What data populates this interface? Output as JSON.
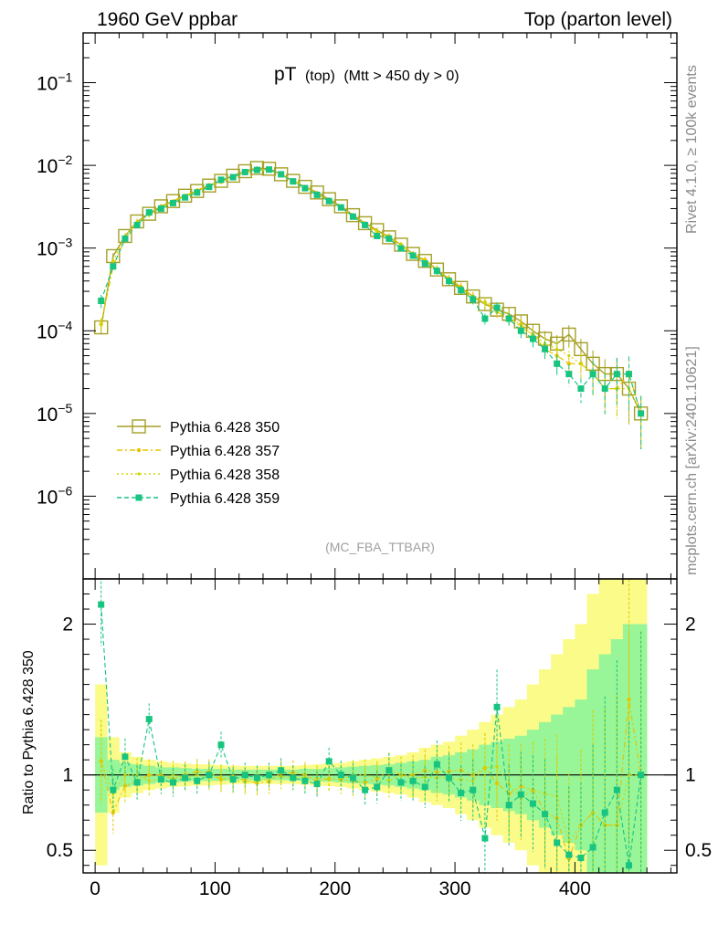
{
  "header": {
    "left": "1960 GeV ppbar",
    "right": "Top (parton level)"
  },
  "side_labels": {
    "rivet": "Rivet 4.1.0, ≥ 100k events",
    "mcplots": "mcplots.cern.ch [arXiv:2401.10621]"
  },
  "main_plot": {
    "title_main": "pT",
    "title_sub": "(top)",
    "title_cond": "(Mtt > 450 dy > 0)",
    "analysis": "(MC_FBA_TTBAR)"
  },
  "ratio_plot": {
    "ylabel": "Ratio to Pythia 6.428 350"
  },
  "colors": {
    "s350": "#a5a027",
    "s357": "#e6c400",
    "s358": "#cfd600",
    "s359": "#17c480",
    "band350": "#98f598",
    "band_yellow": "#fbfb8a"
  },
  "chart_data": {
    "type": "line",
    "title": "pT (top) (Mtt > 450 dy > 0)",
    "xlabel": "",
    "ylabel": "",
    "xlim": [
      -10,
      485
    ],
    "ylim_log": [
      1e-07,
      0.4
    ],
    "ratio_ylim": [
      0.35,
      2.3
    ],
    "x_ticks": [
      0,
      100,
      200,
      300,
      400
    ],
    "y_ticks_log": [
      {
        "value": 1e-06,
        "base": "10",
        "exp": "−6"
      },
      {
        "value": 1e-05,
        "base": "10",
        "exp": "−5"
      },
      {
        "value": 0.0001,
        "base": "10",
        "exp": "−4"
      },
      {
        "value": 0.001,
        "base": "10",
        "exp": "−3"
      },
      {
        "value": 0.01,
        "base": "10",
        "exp": "−2"
      },
      {
        "value": 0.1,
        "base": "10",
        "exp": "−1"
      }
    ],
    "ratio_ticks": [
      {
        "value": 0.5,
        "label": "0.5"
      },
      {
        "value": 1,
        "label": "1"
      },
      {
        "value": 2,
        "label": "2"
      }
    ],
    "x": [
      5,
      15,
      25,
      35,
      45,
      55,
      65,
      75,
      85,
      95,
      105,
      115,
      125,
      135,
      145,
      155,
      165,
      175,
      185,
      195,
      205,
      215,
      225,
      235,
      245,
      255,
      265,
      275,
      285,
      295,
      305,
      315,
      325,
      335,
      345,
      355,
      365,
      375,
      385,
      395,
      405,
      415,
      425,
      435,
      445,
      455
    ],
    "series": [
      {
        "name": "Pythia 6.428 350",
        "key": "s350",
        "marker": "open-square",
        "dash": "none",
        "values": [
          0.00011,
          0.0008,
          0.0014,
          0.0021,
          0.0026,
          0.0032,
          0.0037,
          0.0043,
          0.0049,
          0.0057,
          0.0065,
          0.0075,
          0.0085,
          0.0093,
          0.0091,
          0.0078,
          0.0065,
          0.0055,
          0.0047,
          0.0039,
          0.0032,
          0.0025,
          0.002,
          0.00165,
          0.00135,
          0.0011,
          0.00085,
          0.0007,
          0.00055,
          0.00042,
          0.00033,
          0.00026,
          0.00021,
          0.00018,
          0.00016,
          0.00013,
          0.0001,
          8e-05,
          7e-05,
          9e-05,
          6e-05,
          4e-05,
          3e-05,
          3e-05,
          2e-05,
          1e-05
        ]
      },
      {
        "name": "Pythia 6.428 357",
        "key": "s357",
        "marker": "star",
        "dash": "6,3,2,3",
        "values": [
          0.00012,
          0.0006,
          0.0013,
          0.002,
          0.0026,
          0.0032,
          0.0036,
          0.0043,
          0.005,
          0.0058,
          0.0063,
          0.0074,
          0.0082,
          0.0088,
          0.0087,
          0.0079,
          0.0066,
          0.0055,
          0.0045,
          0.0038,
          0.0031,
          0.0024,
          0.0019,
          0.0016,
          0.0014,
          0.0011,
          0.00085,
          0.00072,
          0.00056,
          0.00043,
          0.00034,
          0.00026,
          0.00022,
          0.00017,
          0.00014,
          0.00012,
          9e-05,
          6e-05,
          5e-05,
          4e-05,
          4e-05,
          3e-05,
          2e-05,
          2e-05,
          3e-05,
          1e-05
        ]
      },
      {
        "name": "Pythia 6.428 358",
        "key": "s358",
        "marker": "dot",
        "dash": "2,3",
        "values": [
          0.00012,
          0.0007,
          0.0014,
          0.0021,
          0.0025,
          0.0031,
          0.0037,
          0.0042,
          0.0049,
          0.0056,
          0.0064,
          0.0072,
          0.0081,
          0.0089,
          0.0089,
          0.0077,
          0.0064,
          0.0054,
          0.0046,
          0.0038,
          0.0031,
          0.0025,
          0.002,
          0.00162,
          0.0013,
          0.0011,
          0.00083,
          0.00069,
          0.00054,
          0.00041,
          0.00032,
          0.00025,
          0.00022,
          0.00019,
          0.00015,
          0.00011,
          9e-05,
          7e-05,
          6e-05,
          5e-05,
          4e-05,
          3e-05,
          2e-05,
          2e-05,
          2e-05,
          1e-05
        ]
      },
      {
        "name": "Pythia 6.428 359",
        "key": "s359",
        "marker": "filled-square",
        "dash": "5,3",
        "values": [
          0.00023,
          0.0006,
          0.0013,
          0.0019,
          0.0027,
          0.003,
          0.0035,
          0.0041,
          0.0047,
          0.0055,
          0.0067,
          0.0072,
          0.0083,
          0.0088,
          0.0089,
          0.0078,
          0.0064,
          0.0053,
          0.0044,
          0.0037,
          0.0031,
          0.0024,
          0.0019,
          0.0014,
          0.0013,
          0.00099,
          0.00081,
          0.00065,
          0.00053,
          0.0004,
          0.00031,
          0.00024,
          0.00014,
          0.00019,
          0.00014,
          0.0001,
          8e-05,
          6e-05,
          4e-05,
          3e-05,
          2e-05,
          3e-05,
          2e-05,
          3e-05,
          3e-05,
          1e-05
        ]
      }
    ],
    "ratio_359": [
      2.13,
      0.9,
      1.12,
      0.95,
      1.37,
      0.97,
      0.95,
      0.98,
      0.96,
      1.0,
      1.2,
      0.97,
      1.0,
      0.98,
      1.0,
      1.03,
      0.98,
      0.96,
      0.94,
      1.09,
      1.0,
      0.98,
      0.9,
      0.92,
      1.03,
      0.95,
      0.96,
      0.92,
      1.07,
      0.98,
      0.88,
      0.9,
      0.58,
      1.45,
      0.8,
      0.87,
      0.81,
      0.74,
      0.55,
      0.47,
      0.45,
      0.52,
      0.75,
      0.9,
      0.4,
      1.0
    ],
    "band350_rel": [
      0.25,
      0.1,
      0.08,
      0.07,
      0.06,
      0.05,
      0.05,
      0.045,
      0.04,
      0.04,
      0.04,
      0.035,
      0.035,
      0.035,
      0.035,
      0.035,
      0.035,
      0.04,
      0.04,
      0.045,
      0.05,
      0.055,
      0.06,
      0.065,
      0.07,
      0.08,
      0.09,
      0.1,
      0.12,
      0.13,
      0.15,
      0.17,
      0.2,
      0.22,
      0.24,
      0.26,
      0.3,
      0.35,
      0.4,
      0.45,
      0.5,
      0.7,
      0.8,
      0.9,
      1.0,
      1.0
    ],
    "band_yellow_rel": [
      0.6,
      0.25,
      0.15,
      0.12,
      0.1,
      0.09,
      0.08,
      0.075,
      0.07,
      0.07,
      0.065,
      0.06,
      0.06,
      0.06,
      0.06,
      0.06,
      0.06,
      0.065,
      0.07,
      0.075,
      0.08,
      0.09,
      0.1,
      0.11,
      0.12,
      0.13,
      0.15,
      0.18,
      0.2,
      0.22,
      0.26,
      0.3,
      0.35,
      0.4,
      0.45,
      0.5,
      0.6,
      0.7,
      0.8,
      0.9,
      1.0,
      1.2,
      1.3,
      1.4,
      1.5,
      1.5
    ]
  }
}
